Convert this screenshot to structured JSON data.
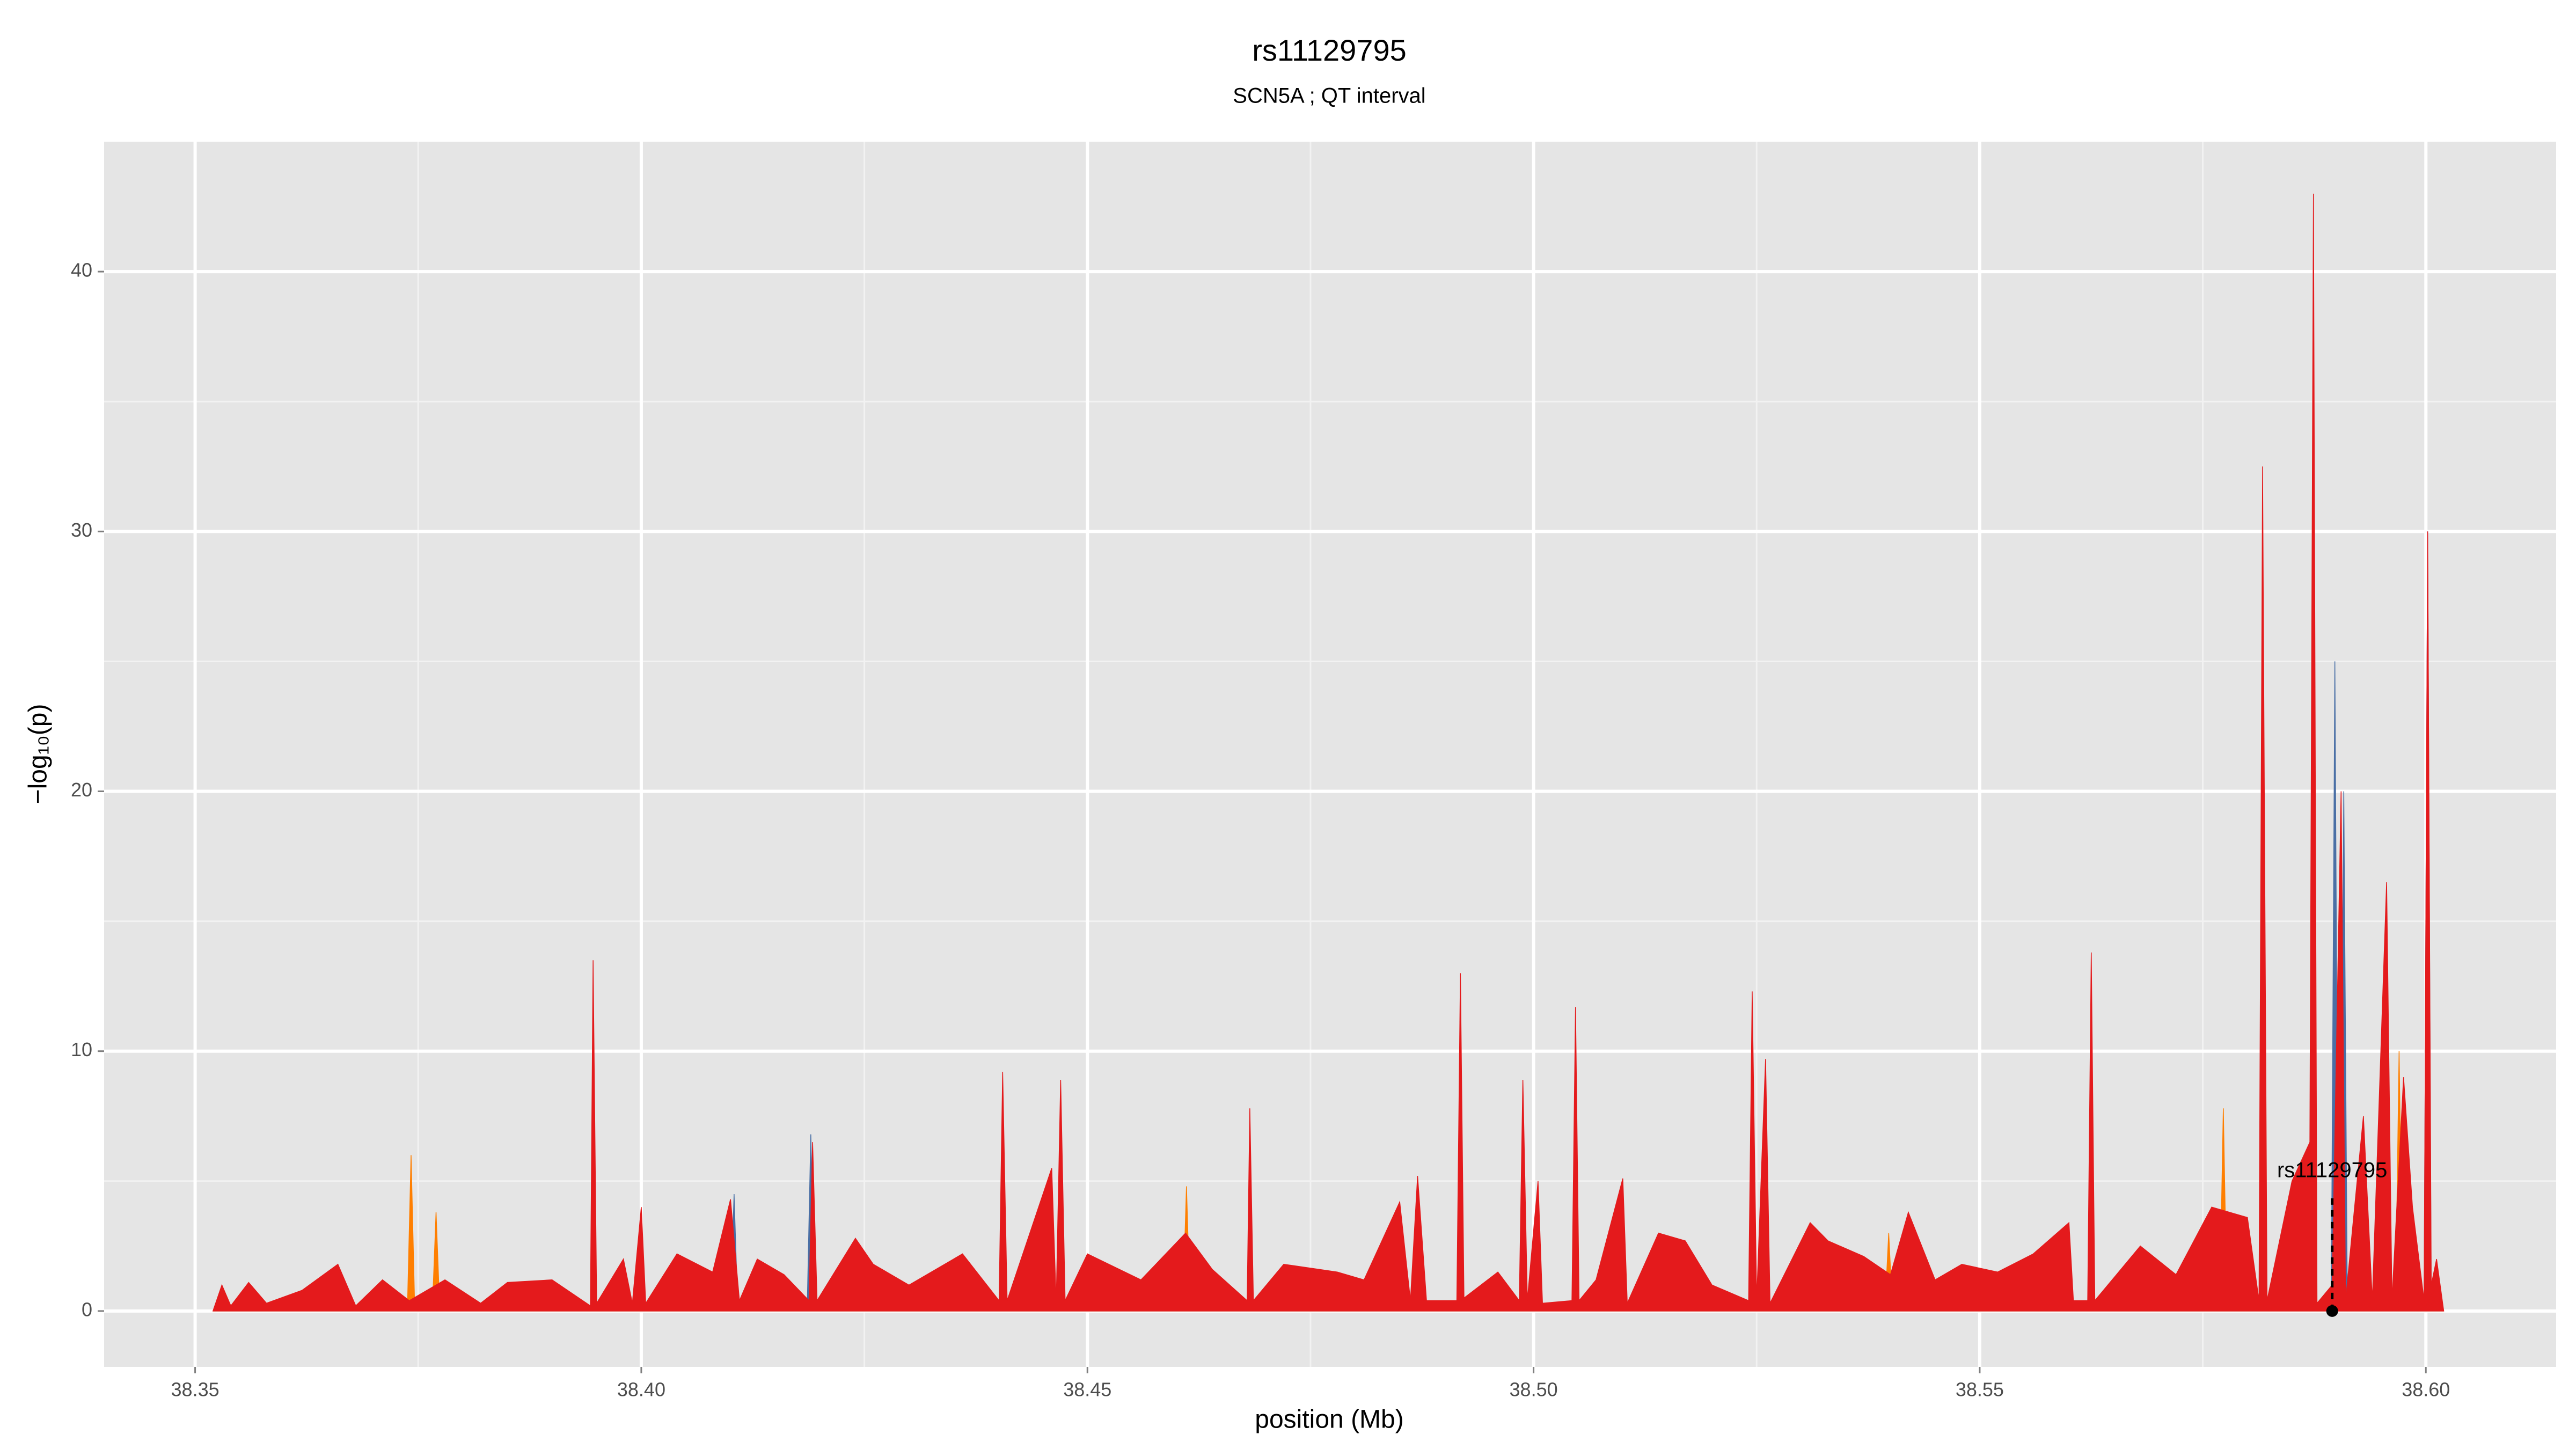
{
  "chart_data": {
    "type": "area",
    "title": "rs11129795",
    "subtitle": "SCN5A ; QT interval",
    "x_label": "position (Mb)",
    "y_label": "−log₁₀(p)",
    "xlim": [
      38.3398,
      38.6146
    ],
    "ylim": [
      -2.15,
      45.0
    ],
    "xticks": [
      38.35,
      {
        "value": 38.4,
        "label": "38.40"
      },
      38.45,
      {
        "value": 38.5,
        "label": "38.50"
      },
      38.55,
      {
        "value": 38.6,
        "label": "38.60"
      }
    ],
    "yticks": [
      0,
      10,
      20,
      30,
      40
    ],
    "xminor": [
      38.375,
      38.425,
      38.475,
      38.525,
      38.575
    ],
    "yminor": [
      5,
      15,
      25,
      35
    ],
    "grid": true,
    "series": [
      {
        "color": "#4a6fa5",
        "x": [
          38.352,
          38.41,
          38.4104,
          38.4108,
          38.4186,
          38.419,
          38.4194,
          38.5894,
          38.5898,
          38.5902,
          38.5904,
          38.5908,
          38.5912,
          38.5998,
          38.6002,
          38.6006,
          38.602
        ],
        "values": [
          0,
          0.2,
          4.5,
          0.2,
          0.2,
          6.8,
          0.2,
          0.2,
          25.0,
          0.2,
          0.2,
          20.0,
          0.2,
          0.2,
          30.0,
          0.2,
          0
        ]
      },
      {
        "color": "#ff7f00",
        "x": [
          38.352,
          38.3738,
          38.3742,
          38.3746,
          38.3766,
          38.377,
          38.3774,
          38.4607,
          38.4611,
          38.4615,
          38.5394,
          38.5398,
          38.5402,
          38.5769,
          38.5773,
          38.5777,
          38.5966,
          38.597,
          38.5974,
          38.602
        ],
        "values": [
          0,
          0.2,
          6.0,
          0.2,
          0.2,
          3.8,
          0.2,
          0.2,
          4.8,
          0.2,
          0.2,
          3.0,
          0.2,
          0.2,
          7.8,
          0.2,
          0.2,
          10.0,
          0.2,
          0
        ]
      },
      {
        "color": "#e41a1c",
        "x": [
          38.352,
          38.353,
          38.354,
          38.356,
          38.358,
          38.362,
          38.366,
          38.368,
          38.371,
          38.374,
          38.378,
          38.382,
          38.385,
          38.39,
          38.3943,
          38.3946,
          38.395,
          38.398,
          38.399,
          38.4,
          38.4005,
          38.404,
          38.408,
          38.41,
          38.411,
          38.413,
          38.416,
          38.4188,
          38.4192,
          38.4197,
          38.424,
          38.426,
          38.43,
          38.436,
          38.4401,
          38.4405,
          38.441,
          38.446,
          38.4465,
          38.447,
          38.4475,
          38.45,
          38.456,
          38.461,
          38.464,
          38.4679,
          38.4682,
          38.4686,
          38.472,
          38.478,
          38.481,
          38.485,
          38.4862,
          38.487,
          38.488,
          38.4914,
          38.4918,
          38.4922,
          38.496,
          38.4984,
          38.4988,
          38.4993,
          38.5005,
          38.501,
          38.5043,
          38.5047,
          38.5051,
          38.507,
          38.51,
          38.5105,
          38.514,
          38.517,
          38.52,
          38.5241,
          38.5245,
          38.525,
          38.526,
          38.5265,
          38.531,
          38.533,
          38.537,
          38.54,
          38.542,
          38.545,
          38.548,
          38.552,
          38.556,
          38.56,
          38.5605,
          38.5621,
          38.5625,
          38.5629,
          38.568,
          38.572,
          38.576,
          38.58,
          38.5813,
          38.5817,
          38.5822,
          38.585,
          38.587,
          38.5874,
          38.5878,
          38.5895,
          38.5905,
          38.591,
          38.593,
          38.594,
          38.5956,
          38.5962,
          38.5975,
          38.5985,
          38.5998,
          38.6002,
          38.6006,
          38.6012,
          38.602
        ],
        "values": [
          0,
          1.0,
          0.2,
          1.1,
          0.3,
          0.8,
          1.8,
          0.2,
          1.2,
          0.4,
          1.2,
          0.3,
          1.1,
          1.2,
          0.2,
          13.5,
          0.3,
          2.0,
          0.3,
          4.0,
          0.3,
          2.2,
          1.5,
          4.3,
          0.4,
          2.0,
          1.4,
          0.4,
          6.5,
          0.4,
          2.8,
          1.8,
          1.0,
          2.2,
          0.4,
          9.2,
          0.4,
          5.5,
          0.3,
          8.9,
          0.4,
          2.2,
          1.2,
          3.0,
          1.6,
          0.4,
          7.8,
          0.4,
          1.8,
          1.5,
          1.2,
          4.2,
          0.4,
          5.2,
          0.4,
          0.4,
          13.0,
          0.5,
          1.5,
          0.4,
          8.9,
          0.4,
          5.0,
          0.3,
          0.4,
          11.7,
          0.4,
          1.2,
          5.1,
          0.3,
          3.0,
          2.7,
          1.0,
          0.4,
          12.3,
          0.4,
          9.7,
          0.3,
          3.4,
          2.7,
          2.1,
          1.4,
          3.8,
          1.2,
          1.8,
          1.5,
          2.2,
          3.4,
          0.4,
          0.4,
          13.8,
          0.4,
          2.5,
          1.4,
          4.0,
          3.6,
          0.4,
          32.5,
          0.4,
          5.0,
          6.5,
          43.0,
          0.3,
          1.0,
          20.0,
          0.4,
          7.5,
          0.4,
          16.5,
          0.4,
          9.0,
          4.0,
          0.4,
          30.0,
          1.0,
          2.0,
          0
        ]
      }
    ],
    "highlight": {
      "label": "rs11129795",
      "x": 38.5895,
      "value": 0
    }
  }
}
